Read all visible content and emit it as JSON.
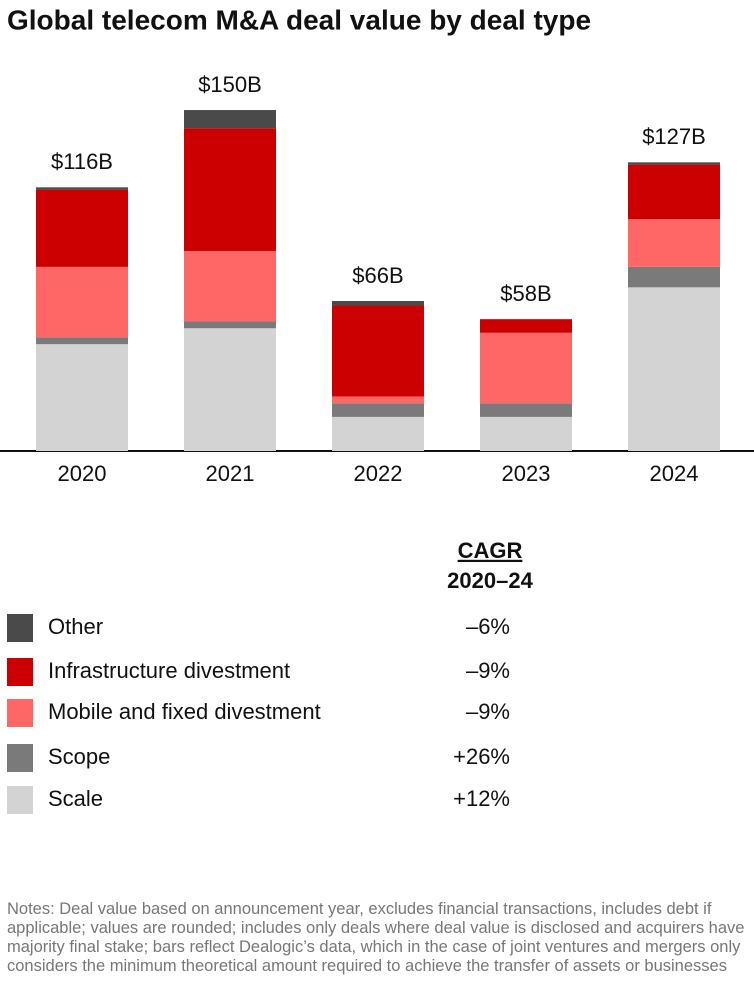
{
  "chart_data": {
    "type": "stacked-bar",
    "title": "Global telecom M&A deal value by deal type",
    "categories": [
      "2020",
      "2021",
      "2022",
      "2023",
      "2024"
    ],
    "series": [
      {
        "name": "Scale",
        "color": "#d3d3d3",
        "values": [
          47,
          54,
          15,
          15,
          72
        ],
        "cagr": "+12%"
      },
      {
        "name": "Scope",
        "color": "#7a7a7a",
        "values": [
          3,
          3,
          6,
          6,
          9
        ],
        "cagr": "+26%"
      },
      {
        "name": "Mobile and fixed divestment",
        "color": "#ff6666",
        "values": [
          31,
          31,
          3,
          31,
          21
        ],
        "cagr": "–9%"
      },
      {
        "name": "Infrastructure divestment",
        "color": "#cc0000",
        "values": [
          34,
          54,
          40,
          6,
          24
        ],
        "cagr": "–9%"
      },
      {
        "name": "Other",
        "color": "#4a4a4a",
        "values": [
          1,
          8,
          2,
          0,
          1
        ],
        "cagr": "–6%"
      }
    ],
    "totals": {
      "values": [
        116,
        150,
        66,
        58,
        127
      ],
      "value_labels": [
        "$116B",
        "$150B",
        "$66B",
        "$58B",
        "$127B"
      ]
    },
    "cagr_header": {
      "title": "CAGR",
      "period": "2020–24"
    },
    "notes": "Notes: Deal value based on announcement year, excludes financial transactions, includes debt if applicable; values are rounded; includes only deals where deal value is disclosed and acquirers have majority final stake; bars reflect Dealogic’s data, which in the case of joint ventures and mergers only considers the minimum theoretical amount required to achieve the transfer of assets or businesses"
  }
}
